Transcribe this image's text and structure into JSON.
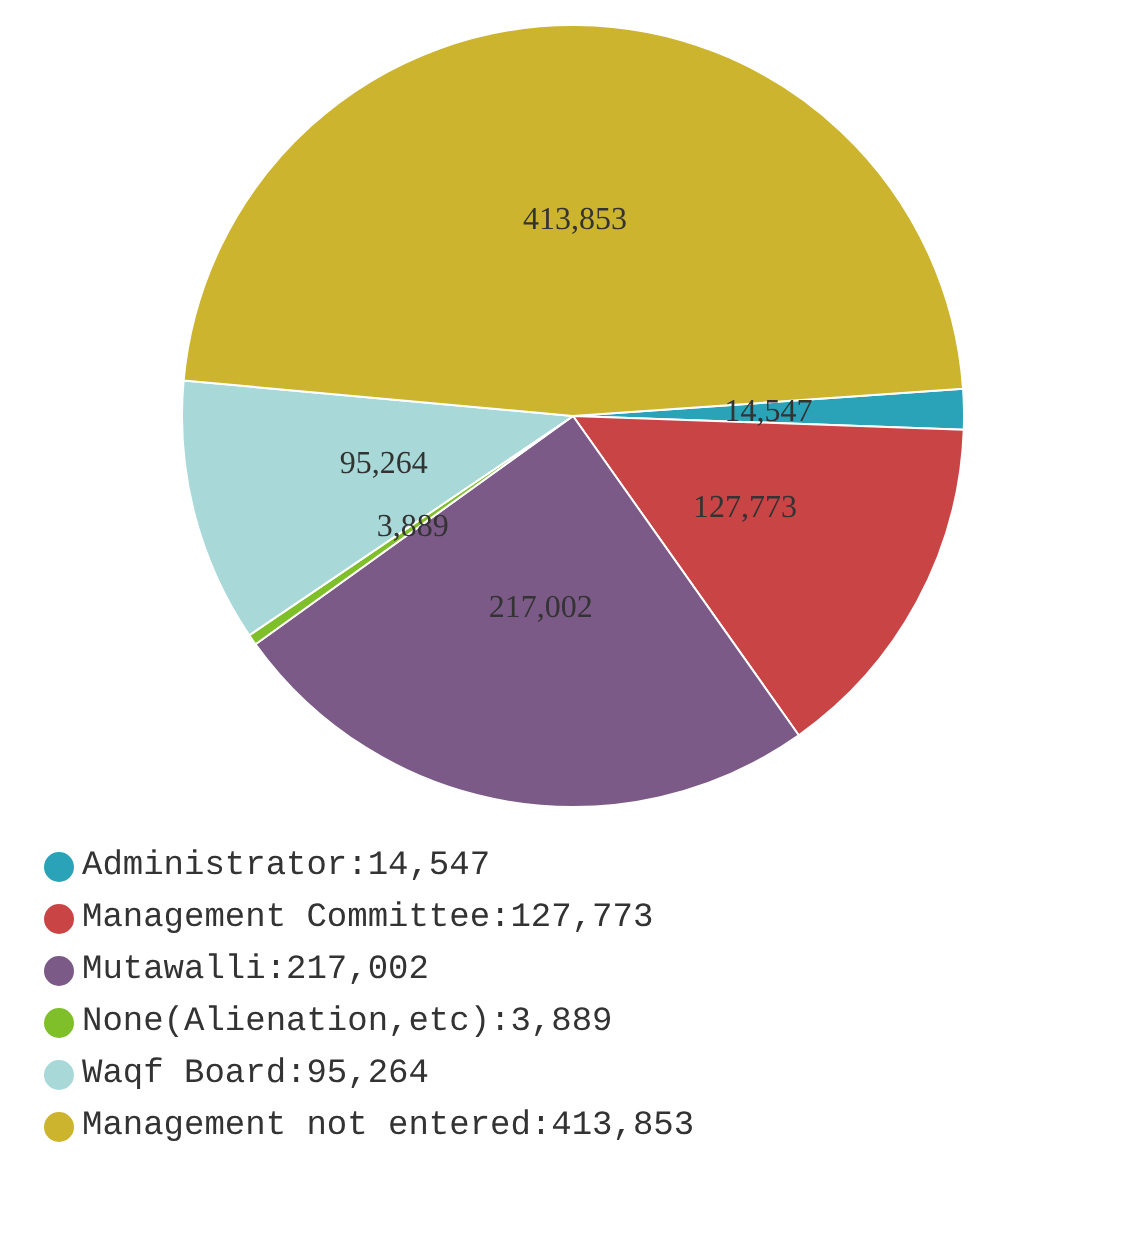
{
  "chart_data": {
    "type": "pie",
    "categories": [
      "Administrator:14,547",
      "Management Committee:127,773",
      "Mutawalli:217,002",
      "None(Alienation,etc):3,889",
      "Waqf Board:95,264",
      "Management not entered:413,853"
    ],
    "values": [
      14547,
      127773,
      217002,
      3889,
      95264,
      413853
    ],
    "value_labels": [
      "14,547",
      "127,773",
      "217,002",
      "3,889",
      "95,264",
      "413,853"
    ],
    "colors": [
      "#2aa3b8",
      "#c94545",
      "#7b5a87",
      "#7fbf2a",
      "#a8d8d8",
      "#cdb42e"
    ],
    "legend": "bottom"
  }
}
